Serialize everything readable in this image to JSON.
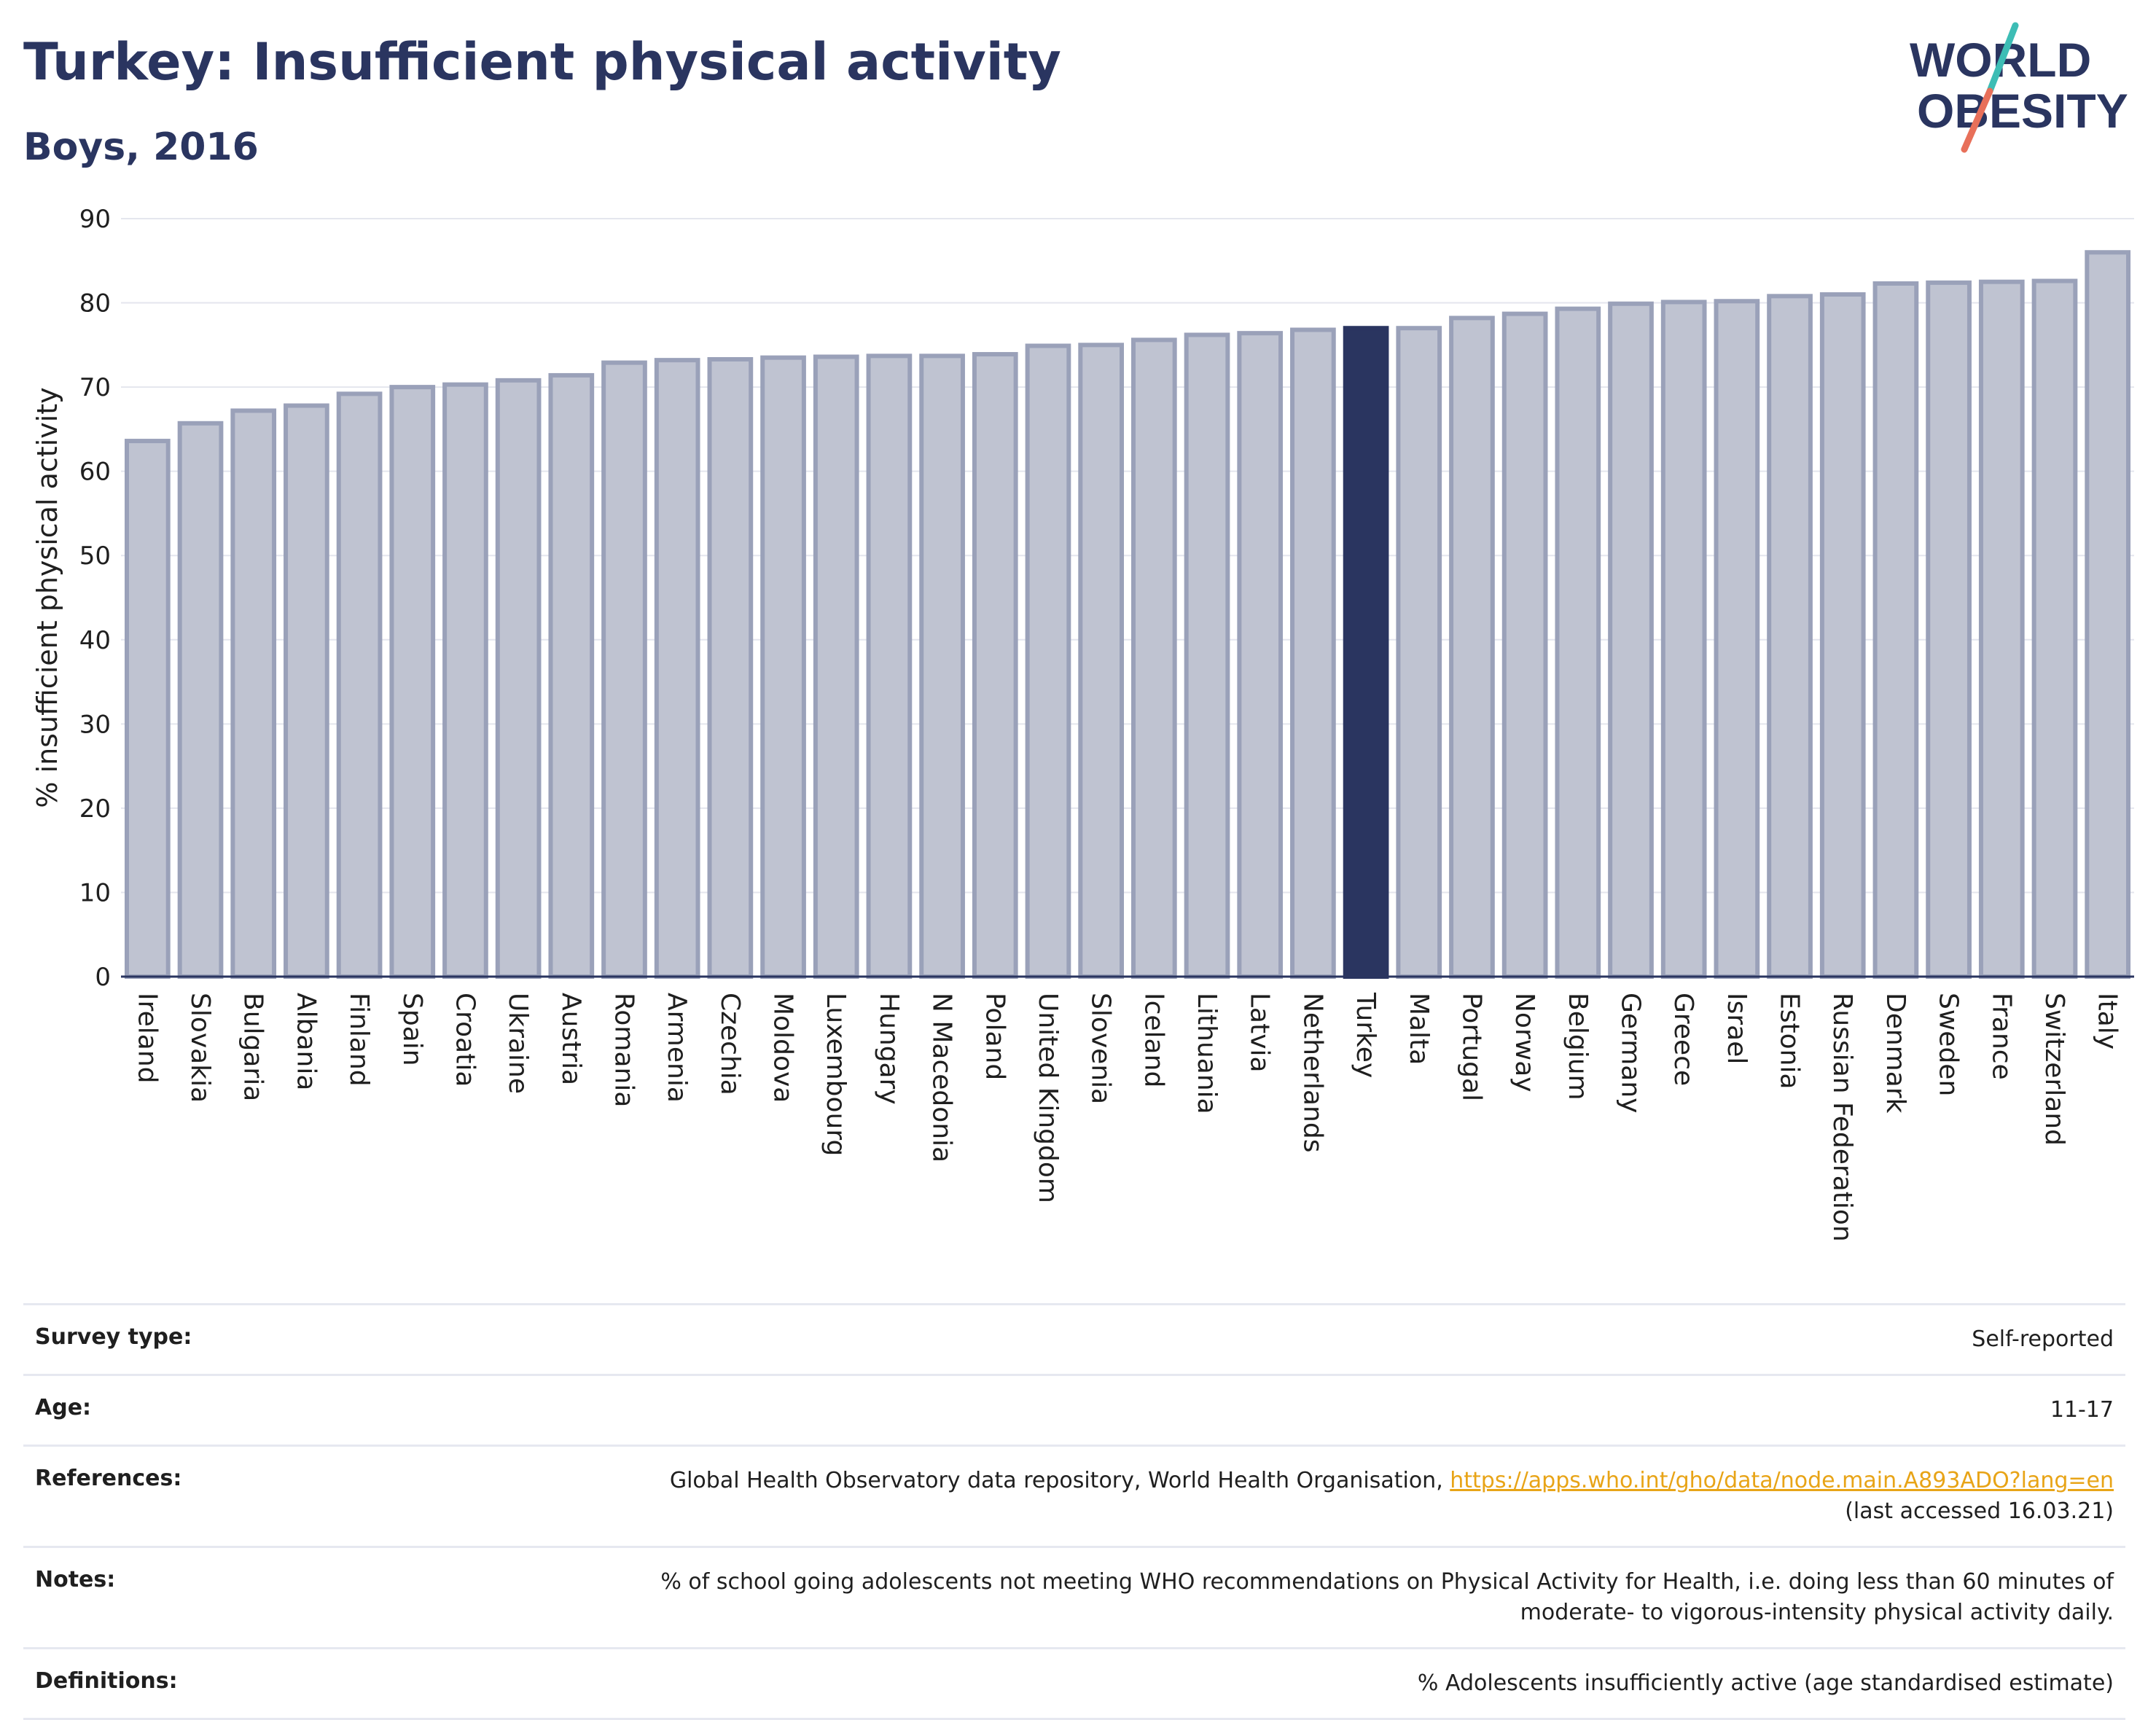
{
  "header": {
    "title": "Turkey: Insufficient physical activity",
    "subtitle": "Boys, 2016"
  },
  "logo": {
    "line1": "WORLD",
    "line2": "OBESITY",
    "colors": {
      "text": "#2a3560",
      "slash_top": "#3dbdb5",
      "slash_bottom": "#e8705a"
    }
  },
  "chart_data": {
    "type": "bar",
    "ylabel": "% insufficient physical activity",
    "ylim": [
      0,
      90
    ],
    "yticks": [
      0,
      10,
      20,
      30,
      40,
      50,
      60,
      70,
      80,
      90
    ],
    "grid": true,
    "highlight": "Turkey",
    "colors": {
      "bar": "#bfc3d1",
      "bar_edge": "#9aa1b9",
      "highlight": "#2a3560"
    },
    "categories": [
      "Ireland",
      "Slovakia",
      "Bulgaria",
      "Albania",
      "Finland",
      "Spain",
      "Croatia",
      "Ukraine",
      "Austria",
      "Romania",
      "Armenia",
      "Czechia",
      "Moldova",
      "Luxembourg",
      "Hungary",
      "N Macedonia",
      "Poland",
      "United Kingdom",
      "Slovenia",
      "Iceland",
      "Lithuania",
      "Latvia",
      "Netherlands",
      "Turkey",
      "Malta",
      "Portugal",
      "Norway",
      "Belgium",
      "Germany",
      "Greece",
      "Israel",
      "Estonia",
      "Russian Federation",
      "Denmark",
      "Sweden",
      "France",
      "Switzerland",
      "Italy"
    ],
    "values": [
      63.6,
      65.7,
      67.2,
      67.8,
      69.2,
      70.0,
      70.3,
      70.8,
      71.4,
      72.9,
      73.2,
      73.3,
      73.5,
      73.6,
      73.7,
      73.7,
      73.9,
      74.9,
      75.0,
      75.6,
      76.2,
      76.4,
      76.8,
      77.0,
      77.0,
      78.2,
      78.7,
      79.3,
      79.9,
      80.1,
      80.2,
      80.8,
      81.0,
      82.3,
      82.4,
      82.5,
      82.6,
      86.0
    ]
  },
  "meta": {
    "survey_type": {
      "label": "Survey type:",
      "value": "Self-reported"
    },
    "age": {
      "label": "Age:",
      "value": "11-17"
    },
    "references": {
      "label": "References:",
      "text": "Global Health Observatory data repository, World Health Organisation, ",
      "link": "https://apps.who.int/gho/data/node.main.A893ADO?lang=en",
      "accessed": "(last accessed 16.03.21)"
    },
    "notes": {
      "label": "Notes:",
      "line1": "% of school going adolescents not meeting WHO recommendations on Physical Activity for Health, i.e. doing less than 60 minutes of",
      "line2": "moderate- to vigorous-intensity physical activity daily."
    },
    "definitions": {
      "label": "Definitions:",
      "value": "% Adolescents insufficiently active (age standardised estimate)"
    }
  }
}
